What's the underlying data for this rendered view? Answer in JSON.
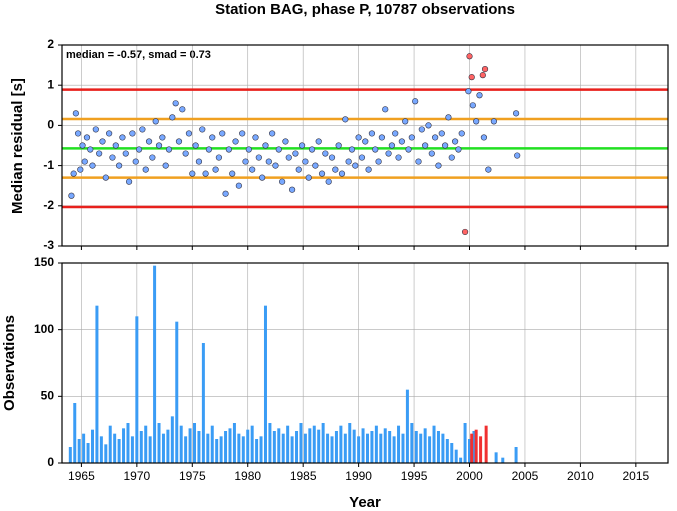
{
  "chart_data": [
    {
      "type": "scatter",
      "title": "Station BAG, phase P, 10787 observations",
      "ylabel": "Median residual [s]",
      "annotation": "median = -0.57, smad = 0.73",
      "xlim": [
        1963.25,
        2017.9
      ],
      "xticks": [
        1965,
        1970,
        1975,
        1980,
        1985,
        1990,
        1995,
        2000,
        2005,
        2010,
        2015
      ],
      "ylim": [
        -3,
        2
      ],
      "yticks": [
        2,
        1,
        0,
        -1,
        -2,
        -3
      ],
      "grid": true,
      "hlines": [
        {
          "value": 0.89,
          "color": "#e8201c"
        },
        {
          "value": 0.16,
          "color": "#f0a020"
        },
        {
          "value": -0.57,
          "color": "#22e022"
        },
        {
          "value": -1.3,
          "color": "#f0a020"
        },
        {
          "value": -2.03,
          "color": "#e8201c"
        }
      ],
      "series": [
        {
          "color": "#78a8ff",
          "x": [
            1964.1,
            1964.3,
            1964.5,
            1964.7,
            1964.9,
            1965.1,
            1965.3,
            1965.5,
            1965.8,
            1966.0,
            1966.3,
            1966.6,
            1966.9,
            1967.2,
            1967.5,
            1967.8,
            1968.1,
            1968.4,
            1968.7,
            1969.0,
            1969.3,
            1969.6,
            1969.9,
            1970.2,
            1970.5,
            1970.8,
            1971.1,
            1971.4,
            1971.7,
            1972.0,
            1972.3,
            1972.6,
            1972.9,
            1973.2,
            1973.5,
            1973.8,
            1974.1,
            1974.4,
            1974.7,
            1975.0,
            1975.3,
            1975.6,
            1975.9,
            1976.2,
            1976.5,
            1976.8,
            1977.1,
            1977.4,
            1977.7,
            1978.0,
            1978.3,
            1978.6,
            1978.9,
            1979.2,
            1979.5,
            1979.8,
            1980.1,
            1980.4,
            1980.7,
            1981.0,
            1981.3,
            1981.6,
            1981.9,
            1982.2,
            1982.5,
            1982.8,
            1983.1,
            1983.4,
            1983.7,
            1984.0,
            1984.3,
            1984.6,
            1984.9,
            1985.2,
            1985.5,
            1985.8,
            1986.1,
            1986.4,
            1986.7,
            1987.0,
            1987.3,
            1987.6,
            1987.9,
            1988.2,
            1988.5,
            1988.8,
            1989.1,
            1989.4,
            1989.7,
            1990.0,
            1990.3,
            1990.6,
            1990.9,
            1991.2,
            1991.5,
            1991.8,
            1992.1,
            1992.4,
            1992.7,
            1993.0,
            1993.3,
            1993.6,
            1993.9,
            1994.2,
            1994.5,
            1994.8,
            1995.1,
            1995.4,
            1995.7,
            1996.0,
            1996.3,
            1996.6,
            1996.9,
            1997.2,
            1997.5,
            1997.8,
            1998.1,
            1998.4,
            1998.7,
            1999.0,
            1999.3,
            1999.9,
            2000.3,
            2000.6,
            2000.9,
            2001.3,
            2001.7,
            2002.2,
            2004.2,
            2004.3
          ],
          "values": [
            -1.75,
            -1.2,
            0.3,
            -0.2,
            -1.1,
            -0.5,
            -0.9,
            -0.3,
            -0.6,
            -1.0,
            -0.1,
            -0.7,
            -0.4,
            -1.3,
            -0.2,
            -0.8,
            -0.5,
            -1.0,
            -0.3,
            -0.7,
            -1.4,
            -0.2,
            -0.9,
            -0.6,
            -0.1,
            -1.1,
            -0.4,
            -0.8,
            0.1,
            -0.5,
            -0.3,
            -1.0,
            -0.6,
            0.2,
            0.55,
            -0.4,
            0.4,
            -0.7,
            -0.2,
            -1.2,
            -0.5,
            -0.9,
            -0.1,
            -1.2,
            -0.6,
            -0.3,
            -1.1,
            -0.8,
            -0.2,
            -1.7,
            -0.6,
            -1.2,
            -0.4,
            -1.5,
            -0.2,
            -0.9,
            -0.6,
            -1.1,
            -0.3,
            -0.8,
            -1.3,
            -0.5,
            -0.9,
            -0.2,
            -1.0,
            -0.6,
            -1.4,
            -0.4,
            -0.8,
            -1.6,
            -0.7,
            -1.1,
            -0.5,
            -0.9,
            -1.3,
            -0.6,
            -1.0,
            -0.4,
            -1.2,
            -0.7,
            -1.4,
            -0.8,
            -1.1,
            -0.5,
            -1.2,
            0.15,
            -0.9,
            -0.6,
            -1.0,
            -0.3,
            -0.8,
            -0.4,
            -1.1,
            -0.2,
            -0.6,
            -0.9,
            -0.3,
            0.4,
            -0.7,
            -0.5,
            -0.2,
            -0.8,
            -0.4,
            0.1,
            -0.6,
            -0.3,
            0.6,
            -0.9,
            -0.1,
            -0.5,
            0.0,
            -0.7,
            -0.3,
            -1.0,
            -0.2,
            -0.5,
            0.2,
            -0.8,
            -0.4,
            -0.6,
            -0.2,
            0.85,
            0.5,
            0.1,
            0.75,
            -0.3,
            -1.1,
            0.1,
            0.3,
            -0.75
          ]
        },
        {
          "color": "#ff6464",
          "x": [
            1999.6,
            2000.0,
            2000.2,
            2001.2,
            2001.4
          ],
          "values": [
            -2.65,
            1.72,
            1.2,
            1.25,
            1.4
          ]
        }
      ]
    },
    {
      "type": "bar",
      "ylabel": "Observations",
      "xlabel": "Year",
      "xlim": [
        1963.25,
        2017.9
      ],
      "xticks": [
        1965,
        1970,
        1975,
        1980,
        1985,
        1990,
        1995,
        2000,
        2005,
        2010,
        2015
      ],
      "ylim": [
        0,
        150
      ],
      "yticks": [
        0,
        50,
        100,
        150
      ],
      "grid": true,
      "series": [
        {
          "color": "#3a9cf5",
          "x": [
            1964.0,
            1964.4,
            1964.8,
            1965.2,
            1965.6,
            1966.0,
            1966.4,
            1966.8,
            1967.2,
            1967.6,
            1968.0,
            1968.4,
            1968.8,
            1969.2,
            1969.6,
            1970.0,
            1970.4,
            1970.8,
            1971.2,
            1971.6,
            1972.0,
            1972.4,
            1972.8,
            1973.2,
            1973.6,
            1974.0,
            1974.4,
            1974.8,
            1975.2,
            1975.6,
            1976.0,
            1976.4,
            1976.8,
            1977.2,
            1977.6,
            1978.0,
            1978.4,
            1978.8,
            1979.2,
            1979.6,
            1980.0,
            1980.4,
            1980.8,
            1981.2,
            1981.6,
            1982.0,
            1982.4,
            1982.8,
            1983.2,
            1983.6,
            1984.0,
            1984.4,
            1984.8,
            1985.2,
            1985.6,
            1986.0,
            1986.4,
            1986.8,
            1987.2,
            1987.6,
            1988.0,
            1988.4,
            1988.8,
            1989.2,
            1989.6,
            1990.0,
            1990.4,
            1990.8,
            1991.2,
            1991.6,
            1992.0,
            1992.4,
            1992.8,
            1993.2,
            1993.6,
            1994.0,
            1994.4,
            1994.8,
            1995.2,
            1995.6,
            1996.0,
            1996.4,
            1996.8,
            1997.2,
            1997.6,
            1998.0,
            1998.4,
            1998.8,
            1999.2,
            1999.6,
            2000.0,
            2000.4,
            2002.4,
            2003.0,
            2004.2
          ],
          "values": [
            12,
            45,
            18,
            22,
            15,
            25,
            118,
            20,
            14,
            28,
            22,
            18,
            26,
            30,
            20,
            110,
            24,
            28,
            20,
            148,
            30,
            22,
            25,
            35,
            106,
            28,
            20,
            26,
            30,
            24,
            90,
            22,
            28,
            18,
            20,
            24,
            26,
            30,
            22,
            20,
            25,
            28,
            18,
            20,
            118,
            30,
            24,
            26,
            22,
            28,
            20,
            24,
            30,
            22,
            26,
            28,
            25,
            30,
            22,
            20,
            24,
            28,
            22,
            30,
            25,
            20,
            26,
            22,
            24,
            28,
            22,
            26,
            24,
            20,
            28,
            22,
            55,
            30,
            24,
            22,
            26,
            20,
            28,
            24,
            22,
            18,
            15,
            10,
            4,
            30,
            18,
            24,
            8,
            4,
            12
          ]
        },
        {
          "color": "#f03030",
          "x": [
            2000.2,
            2000.6,
            2001.0,
            2001.5
          ],
          "values": [
            22,
            25,
            20,
            28
          ]
        }
      ]
    }
  ]
}
